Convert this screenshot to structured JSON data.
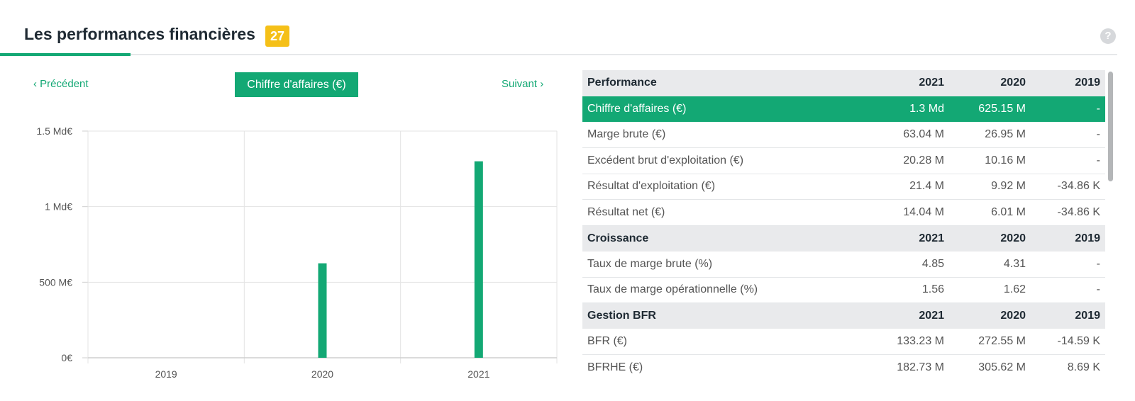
{
  "header": {
    "title": "Les performances financières",
    "badge": "27",
    "help_icon": "question-icon",
    "help_symbol": "?"
  },
  "chart_nav": {
    "prev_label": "Précédent",
    "next_label": "Suivant",
    "metric_label": "Chiffre d'affaires (€)"
  },
  "colors": {
    "accent": "#13a874",
    "badge": "#f5c018",
    "header_row": "#e9eaec"
  },
  "chart_data": {
    "type": "bar",
    "categories": [
      "2019",
      "2020",
      "2021"
    ],
    "values": [
      0,
      625.15,
      1300
    ],
    "ylim": [
      0,
      1500
    ],
    "yticks": [
      0,
      500,
      1000,
      1500
    ],
    "ytick_labels": [
      "0€",
      "500 M€",
      "1 Md€",
      "1.5 Md€"
    ],
    "grid": true
  },
  "table": {
    "sections": [
      {
        "title": "Performance",
        "years": [
          "2021",
          "2020",
          "2019"
        ],
        "rows": [
          {
            "label": "Chiffre d'affaires (€)",
            "values": [
              "1.3 Md",
              "625.15 M",
              "-"
            ],
            "active": true
          },
          {
            "label": "Marge brute (€)",
            "values": [
              "63.04 M",
              "26.95 M",
              "-"
            ]
          },
          {
            "label": "Excédent brut d'exploitation (€)",
            "values": [
              "20.28 M",
              "10.16 M",
              "-"
            ]
          },
          {
            "label": "Résultat d'exploitation (€)",
            "values": [
              "21.4 M",
              "9.92 M",
              "-34.86 K"
            ]
          },
          {
            "label": "Résultat net (€)",
            "values": [
              "14.04 M",
              "6.01 M",
              "-34.86 K"
            ]
          }
        ]
      },
      {
        "title": "Croissance",
        "years": [
          "2021",
          "2020",
          "2019"
        ],
        "rows": [
          {
            "label": "Taux de marge brute (%)",
            "values": [
              "4.85",
              "4.31",
              "-"
            ]
          },
          {
            "label": "Taux de marge opérationnelle (%)",
            "values": [
              "1.56",
              "1.62",
              "-"
            ]
          }
        ]
      },
      {
        "title": "Gestion BFR",
        "years": [
          "2021",
          "2020",
          "2019"
        ],
        "rows": [
          {
            "label": "BFR (€)",
            "values": [
              "133.23 M",
              "272.55 M",
              "-14.59 K"
            ]
          },
          {
            "label": "BFRHE (€)",
            "values": [
              "182.73 M",
              "305.62 M",
              "8.69 K"
            ]
          }
        ]
      }
    ]
  }
}
